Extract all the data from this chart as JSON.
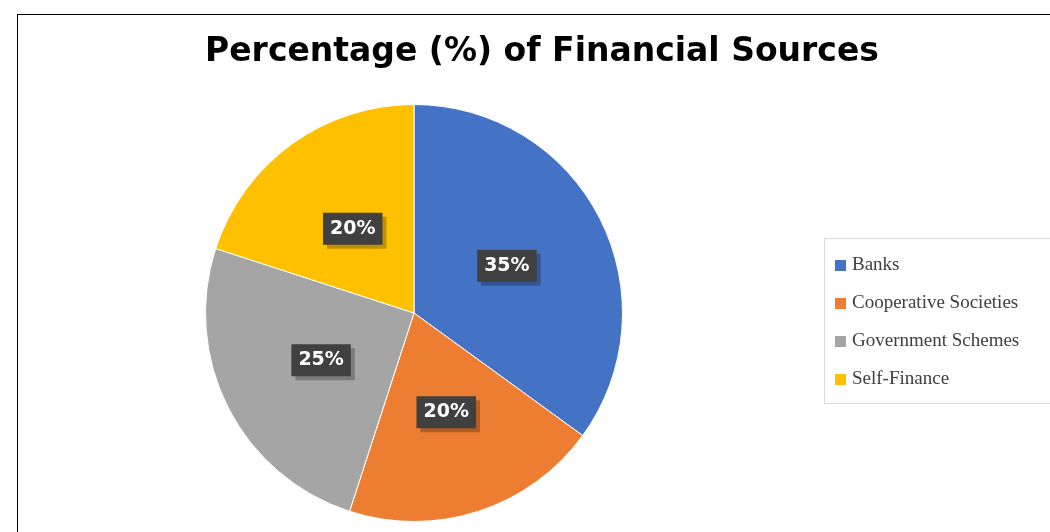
{
  "chart_data": {
    "type": "pie",
    "title": "Percentage (%) of Financial Sources",
    "categories": [
      "Banks",
      "Cooperative Societies",
      "Government Schemes",
      "Self-Finance"
    ],
    "values": [
      35,
      20,
      25,
      20
    ],
    "colors": [
      "#4472c4",
      "#ed7d31",
      "#a5a5a5",
      "#ffc000"
    ],
    "value_labels": [
      "35%",
      "20%",
      "25%",
      "20%"
    ],
    "legend": "right"
  }
}
